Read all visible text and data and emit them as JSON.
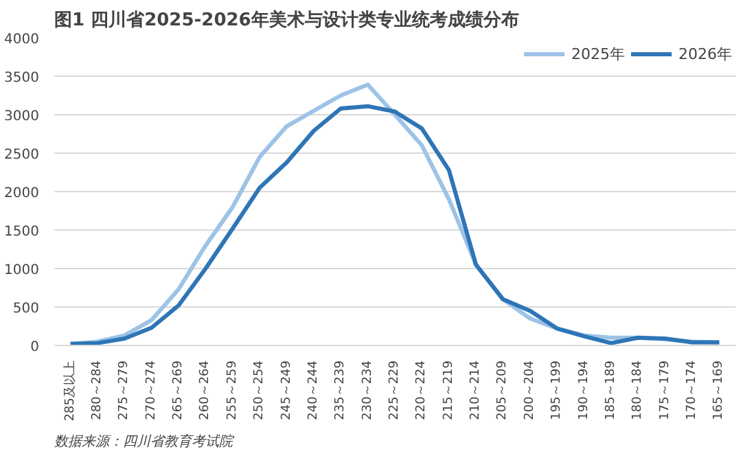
{
  "chart_data": {
    "type": "line",
    "title": "图1 四川省2025-2026年美术与设计类专业统考成绩分布",
    "categories": [
      "285及以上",
      "280～284",
      "275～279",
      "270～274",
      "265～269",
      "260～264",
      "255～259",
      "250～254",
      "245～249",
      "240～244",
      "235～239",
      "230～234",
      "225～229",
      "220～224",
      "215～219",
      "210～214",
      "205～209",
      "200～204",
      "195～199",
      "190～194",
      "185～189",
      "180～184",
      "175～179",
      "170～174",
      "165～169"
    ],
    "series": [
      {
        "name": "2025年",
        "color": "#9dc3e6",
        "values": [
          20,
          50,
          130,
          330,
          730,
          1300,
          1800,
          2450,
          2850,
          3050,
          3250,
          3390,
          3000,
          2600,
          1900,
          1050,
          600,
          350,
          220,
          130,
          100,
          100,
          80,
          50,
          40
        ]
      },
      {
        "name": "2026年",
        "color": "#2e75b6",
        "values": [
          20,
          30,
          90,
          230,
          520,
          1000,
          1520,
          2050,
          2380,
          2790,
          3080,
          3110,
          3040,
          2820,
          2280,
          1050,
          600,
          450,
          220,
          120,
          30,
          100,
          90,
          40,
          40
        ]
      }
    ],
    "ylim": [
      0,
      4000
    ],
    "yticks": [
      0,
      500,
      1000,
      1500,
      2000,
      2500,
      3000,
      3500,
      4000
    ],
    "grid": "y",
    "legend": "top right",
    "marker": "none",
    "line_style": "solid",
    "annotations": [
      "数据来源：四川省教育考试院"
    ]
  }
}
